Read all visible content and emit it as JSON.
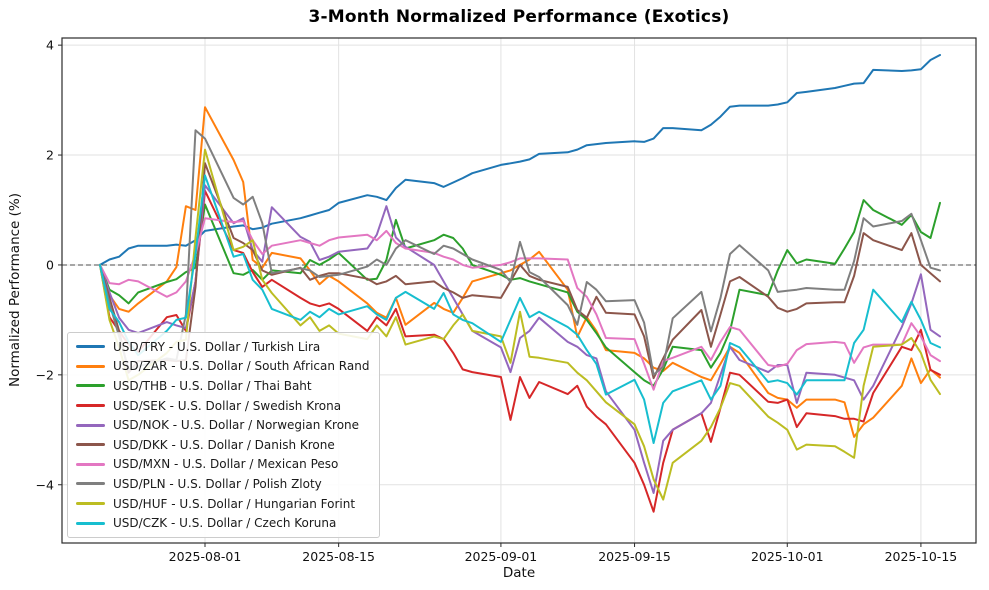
{
  "title": "3-Month Normalized Performance (Exotics)",
  "xlabel": "Date",
  "ylabel": "Normalized Performance (%)",
  "chart_data": {
    "type": "line",
    "title": "3-Month Normalized Performance (Exotics)",
    "xlabel": "Date",
    "ylabel": "Normalized Performance (%)",
    "grid": true,
    "zero_line_dashed": true,
    "legend_position": "lower left",
    "ylim": [
      -5.06,
      4.13
    ],
    "yticks": [
      {
        "value": 4,
        "label": "4"
      },
      {
        "value": 2,
        "label": "2"
      },
      {
        "value": 0,
        "label": "0"
      },
      {
        "value": -2,
        "label": "−2"
      },
      {
        "value": -4,
        "label": "−4"
      }
    ],
    "x_tick_dates": [
      "2025-08-01",
      "2025-08-15",
      "2025-09-01",
      "2025-09-15",
      "2025-10-01",
      "2025-10-15"
    ],
    "x": [
      "2025-07-21",
      "2025-07-22",
      "2025-07-23",
      "2025-07-24",
      "2025-07-25",
      "2025-07-28",
      "2025-07-29",
      "2025-07-30",
      "2025-07-31",
      "2025-08-01",
      "2025-08-04",
      "2025-08-05",
      "2025-08-06",
      "2025-08-07",
      "2025-08-08",
      "2025-08-11",
      "2025-08-12",
      "2025-08-13",
      "2025-08-14",
      "2025-08-15",
      "2025-08-18",
      "2025-08-19",
      "2025-08-20",
      "2025-08-21",
      "2025-08-22",
      "2025-08-25",
      "2025-08-26",
      "2025-08-27",
      "2025-08-28",
      "2025-08-29",
      "2025-09-01",
      "2025-09-02",
      "2025-09-03",
      "2025-09-04",
      "2025-09-05",
      "2025-09-08",
      "2025-09-09",
      "2025-09-10",
      "2025-09-11",
      "2025-09-12",
      "2025-09-15",
      "2025-09-16",
      "2025-09-17",
      "2025-09-18",
      "2025-09-19",
      "2025-09-22",
      "2025-09-23",
      "2025-09-24",
      "2025-09-25",
      "2025-09-26",
      "2025-09-29",
      "2025-09-30",
      "2025-10-01",
      "2025-10-02",
      "2025-10-03",
      "2025-10-06",
      "2025-10-07",
      "2025-10-08",
      "2025-10-09",
      "2025-10-10",
      "2025-10-13",
      "2025-10-14",
      "2025-10-15",
      "2025-10-16",
      "2025-10-17"
    ],
    "series": [
      {
        "pair": "USD/TRY",
        "name": "USD/TRY - U.S. Dollar / Turkish Lira",
        "color": "#1f77b4",
        "values": [
          0.0,
          0.1,
          0.15,
          0.3,
          0.35,
          0.35,
          0.37,
          0.35,
          0.45,
          0.62,
          0.7,
          0.72,
          0.65,
          0.68,
          0.75,
          0.85,
          0.9,
          0.95,
          1.0,
          1.13,
          1.27,
          1.24,
          1.18,
          1.4,
          1.55,
          1.49,
          1.42,
          1.5,
          1.58,
          1.67,
          1.82,
          1.85,
          1.88,
          1.92,
          2.02,
          2.05,
          2.1,
          2.18,
          2.2,
          2.22,
          2.25,
          2.24,
          2.3,
          2.49,
          2.49,
          2.45,
          2.55,
          2.7,
          2.88,
          2.9,
          2.9,
          2.92,
          2.96,
          3.13,
          3.15,
          3.22,
          3.26,
          3.3,
          3.31,
          3.55,
          3.53,
          3.54,
          3.56,
          3.73,
          3.82
        ]
      },
      {
        "pair": "USD/ZAR",
        "name": "USD/ZAR - U.S. Dollar / South African Rand",
        "color": "#ff7f0e",
        "values": [
          0.0,
          -0.55,
          -0.8,
          -0.85,
          -0.7,
          -0.3,
          -0.04,
          1.07,
          1.0,
          2.87,
          1.91,
          1.51,
          0.09,
          -0.05,
          0.22,
          0.12,
          -0.1,
          -0.35,
          -0.2,
          -0.3,
          -0.7,
          -0.87,
          -0.96,
          -0.6,
          -1.09,
          -0.69,
          -0.8,
          -0.87,
          -0.6,
          -0.3,
          -0.15,
          -0.1,
          0.0,
          0.1,
          0.24,
          -0.45,
          -1.31,
          -0.95,
          -1.2,
          -1.55,
          -1.6,
          -1.7,
          -1.87,
          -1.93,
          -1.78,
          -2.04,
          -2.1,
          -1.8,
          -1.49,
          -1.6,
          -2.33,
          -2.42,
          -2.45,
          -2.6,
          -2.45,
          -2.45,
          -2.5,
          -3.13,
          -2.9,
          -2.78,
          -2.2,
          -1.7,
          -2.15,
          -1.9,
          -2.05
        ]
      },
      {
        "pair": "USD/THB",
        "name": "USD/THB - U.S. Dollar / Thai Baht",
        "color": "#2ca02c",
        "values": [
          0.0,
          -0.45,
          -0.55,
          -0.7,
          -0.5,
          -0.31,
          -0.26,
          -0.13,
          -0.05,
          1.1,
          -0.15,
          -0.18,
          -0.09,
          -0.27,
          -0.1,
          -0.15,
          0.09,
          0.0,
          0.1,
          0.22,
          -0.27,
          -0.25,
          0.09,
          0.82,
          0.3,
          0.45,
          0.55,
          0.49,
          0.3,
          0.0,
          -0.18,
          -0.27,
          -0.24,
          -0.3,
          -0.35,
          -0.5,
          -0.85,
          -1.0,
          -1.24,
          -1.5,
          -1.95,
          -2.1,
          -2.2,
          -1.9,
          -1.49,
          -1.55,
          -1.87,
          -1.6,
          -1.2,
          -0.45,
          -0.55,
          -0.1,
          0.27,
          0.03,
          0.1,
          0.02,
          0.3,
          0.6,
          1.18,
          1.0,
          0.73,
          0.91,
          0.6,
          0.49,
          1.13
        ]
      },
      {
        "pair": "USD/SEK",
        "name": "USD/SEK - U.S. Dollar / Swedish Krona",
        "color": "#d62728",
        "values": [
          0.0,
          -0.95,
          -1.2,
          -1.45,
          -1.58,
          -0.95,
          -0.91,
          -1.2,
          -0.3,
          1.35,
          0.27,
          0.22,
          -0.13,
          -0.4,
          -0.27,
          -0.6,
          -0.7,
          -0.75,
          -0.7,
          -0.8,
          -1.2,
          -0.95,
          -1.1,
          -0.8,
          -1.3,
          -1.27,
          -1.35,
          -1.6,
          -1.9,
          -1.95,
          -2.04,
          -2.82,
          -2.04,
          -2.42,
          -2.13,
          -2.35,
          -2.2,
          -2.58,
          -2.76,
          -2.9,
          -3.6,
          -4.0,
          -4.49,
          -3.6,
          -3.0,
          -2.7,
          -3.22,
          -2.6,
          -1.96,
          -2.0,
          -2.49,
          -2.51,
          -2.45,
          -2.95,
          -2.7,
          -2.75,
          -2.8,
          -2.8,
          -2.85,
          -2.33,
          -1.49,
          -1.55,
          -1.18,
          -1.91,
          -2.0
        ]
      },
      {
        "pair": "USD/NOK",
        "name": "USD/NOK - U.S. Dollar / Norwegian Krone",
        "color": "#9467bd",
        "values": [
          0.0,
          -0.5,
          -0.96,
          -1.18,
          -1.24,
          -1.04,
          -1.1,
          -1.15,
          -0.3,
          1.45,
          0.76,
          0.85,
          0.27,
          0.06,
          1.05,
          0.51,
          0.42,
          0.09,
          0.15,
          0.24,
          0.3,
          0.55,
          1.07,
          0.5,
          0.33,
          0.0,
          -0.3,
          -0.6,
          -0.9,
          -1.2,
          -1.5,
          -1.95,
          -1.33,
          -1.2,
          -0.96,
          -1.4,
          -1.49,
          -1.64,
          -1.7,
          -2.3,
          -3.0,
          -3.6,
          -4.15,
          -3.2,
          -3.0,
          -2.7,
          -2.51,
          -2.0,
          -1.49,
          -1.73,
          -1.95,
          -1.82,
          -1.82,
          -2.51,
          -1.96,
          -2.0,
          -2.05,
          -2.1,
          -2.45,
          -2.2,
          -1.13,
          -0.7,
          -0.17,
          -1.18,
          -1.3
        ]
      },
      {
        "pair": "USD/DKK",
        "name": "USD/DKK - U.S. Dollar / Danish Krone",
        "color": "#8c564b",
        "values": [
          0.0,
          -0.6,
          -1.2,
          -1.96,
          -1.75,
          -1.73,
          -1.75,
          -1.73,
          -0.4,
          1.85,
          0.49,
          0.4,
          0.27,
          -0.1,
          -0.18,
          -0.05,
          -0.27,
          -0.2,
          -0.15,
          -0.15,
          -0.25,
          -0.35,
          -0.3,
          -0.2,
          -0.35,
          -0.3,
          -0.42,
          -0.5,
          -0.6,
          -0.55,
          -0.6,
          -0.3,
          0.0,
          -0.2,
          -0.27,
          -0.4,
          -0.82,
          -0.96,
          -0.58,
          -0.87,
          -0.9,
          -1.3,
          -2.06,
          -1.7,
          -1.36,
          -0.82,
          -1.49,
          -0.9,
          -0.3,
          -0.22,
          -0.58,
          -0.78,
          -0.85,
          -0.8,
          -0.7,
          -0.68,
          -0.68,
          -0.2,
          0.58,
          0.45,
          0.27,
          0.58,
          0.0,
          -0.15,
          -0.3
        ]
      },
      {
        "pair": "USD/MXN",
        "name": "USD/MXN - U.S. Dollar / Mexican Peso",
        "color": "#e377c2",
        "values": [
          0.0,
          -0.33,
          -0.35,
          -0.27,
          -0.3,
          -0.58,
          -0.5,
          -0.3,
          0.2,
          0.85,
          0.78,
          0.8,
          0.45,
          0.2,
          0.35,
          0.45,
          0.4,
          0.35,
          0.45,
          0.5,
          0.55,
          0.45,
          0.62,
          0.4,
          0.3,
          0.22,
          0.15,
          0.1,
          0.0,
          -0.05,
          0.0,
          0.05,
          0.12,
          0.12,
          0.12,
          0.1,
          -0.42,
          -0.58,
          -0.9,
          -1.33,
          -1.35,
          -1.8,
          -2.27,
          -1.75,
          -1.69,
          -1.49,
          -1.73,
          -1.4,
          -1.13,
          -1.18,
          -1.82,
          -1.85,
          -1.8,
          -1.55,
          -1.44,
          -1.4,
          -1.42,
          -1.78,
          -1.5,
          -1.45,
          -1.45,
          -1.06,
          -1.3,
          -1.64,
          -1.75
        ]
      },
      {
        "pair": "USD/PLN",
        "name": "USD/PLN - U.S. Dollar / Polish Zloty",
        "color": "#7f7f7f",
        "values": [
          0.0,
          -0.7,
          -1.3,
          -1.9,
          -1.85,
          -1.7,
          -1.73,
          -0.9,
          2.45,
          2.3,
          1.22,
          1.1,
          1.24,
          0.76,
          -0.15,
          -0.06,
          -0.1,
          -0.22,
          -0.2,
          -0.18,
          -0.03,
          0.1,
          0.0,
          0.3,
          0.45,
          0.2,
          0.35,
          0.3,
          0.2,
          0.1,
          -0.09,
          -0.31,
          0.42,
          -0.13,
          -0.22,
          -0.73,
          -1.09,
          -0.31,
          -0.45,
          -0.66,
          -0.64,
          -1.05,
          -2.0,
          -1.85,
          -0.97,
          -0.49,
          -1.21,
          -0.6,
          0.2,
          0.36,
          -0.1,
          -0.49,
          -0.47,
          -0.45,
          -0.42,
          -0.45,
          -0.45,
          0.07,
          0.85,
          0.7,
          0.8,
          0.93,
          0.45,
          -0.05,
          -0.1
        ]
      },
      {
        "pair": "USD/HUF",
        "name": "USD/HUF - U.S. Dollar / Hungarian Forint",
        "color": "#bcbd22",
        "values": [
          0.0,
          -1.0,
          -1.5,
          -2.1,
          -2.0,
          -1.6,
          -1.4,
          -1.36,
          0.5,
          2.1,
          0.27,
          0.33,
          0.45,
          -0.27,
          -0.51,
          -1.1,
          -0.95,
          -1.2,
          -1.1,
          -1.25,
          -1.35,
          -1.1,
          -1.3,
          -0.95,
          -1.45,
          -1.3,
          -1.35,
          -1.1,
          -0.9,
          -1.2,
          -1.3,
          -1.78,
          -0.85,
          -1.67,
          -1.69,
          -1.78,
          -1.96,
          -2.1,
          -2.3,
          -2.5,
          -2.9,
          -3.3,
          -3.9,
          -4.27,
          -3.6,
          -3.2,
          -2.95,
          -2.6,
          -2.15,
          -2.2,
          -2.76,
          -2.87,
          -3.0,
          -3.36,
          -3.27,
          -3.3,
          -3.4,
          -3.51,
          -2.2,
          -1.49,
          -1.45,
          -1.33,
          -1.6,
          -2.09,
          -2.35
        ]
      },
      {
        "pair": "USD/CZK",
        "name": "USD/CZK - U.S. Dollar / Czech Koruna",
        "color": "#17becf",
        "values": [
          0.0,
          -0.8,
          -1.04,
          -1.4,
          -1.64,
          -1.2,
          -1.0,
          -0.96,
          0.2,
          1.63,
          0.15,
          0.2,
          -0.27,
          -0.45,
          -0.8,
          -1.0,
          -0.85,
          -0.95,
          -0.8,
          -0.9,
          -0.75,
          -0.9,
          -1.0,
          -0.6,
          -0.49,
          -0.8,
          -0.51,
          -0.9,
          -1.0,
          -1.06,
          -1.4,
          -1.0,
          -0.6,
          -0.95,
          -0.85,
          -1.13,
          -1.27,
          -1.55,
          -1.8,
          -2.36,
          -2.09,
          -2.45,
          -3.24,
          -2.51,
          -2.3,
          -2.1,
          -2.45,
          -2.2,
          -1.42,
          -1.5,
          -2.13,
          -2.1,
          -2.15,
          -2.36,
          -2.1,
          -2.1,
          -2.1,
          -1.42,
          -1.18,
          -0.45,
          -1.04,
          -0.67,
          -1.0,
          -1.42,
          -1.5
        ]
      }
    ]
  }
}
